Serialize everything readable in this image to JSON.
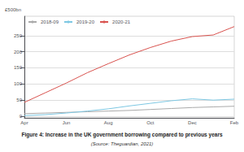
{
  "chart_data": {
    "type": "line",
    "title": "Figure 4: Increase in the UK government borrowing compared to previous years",
    "subtitle": "(Source: Theguardian, 2021)",
    "ylabel": "£500bn",
    "categories": [
      "Apr",
      null,
      "Jun",
      null,
      "Aug",
      null,
      "Oct",
      null,
      "Dec",
      null,
      "Feb"
    ],
    "series": [
      {
        "name": "2018-09",
        "color": "#aaaaaa",
        "values": [
          8,
          10,
          12,
          14,
          16,
          18,
          21,
          24,
          27,
          29,
          31
        ]
      },
      {
        "name": "2019-20",
        "color": "#7ec8e3",
        "values": [
          2,
          5,
          10,
          16,
          23,
          32,
          40,
          48,
          54,
          50,
          53
        ]
      },
      {
        "name": "2020-21",
        "color": "#d9534f",
        "values": [
          43,
          73,
          103,
          135,
          163,
          190,
          213,
          233,
          247,
          252,
          278
        ]
      }
    ],
    "ylim": [
      -5,
      310
    ],
    "yticks": [
      0,
      50,
      100,
      150,
      200,
      250
    ],
    "grid": true,
    "legend": "upper left"
  }
}
